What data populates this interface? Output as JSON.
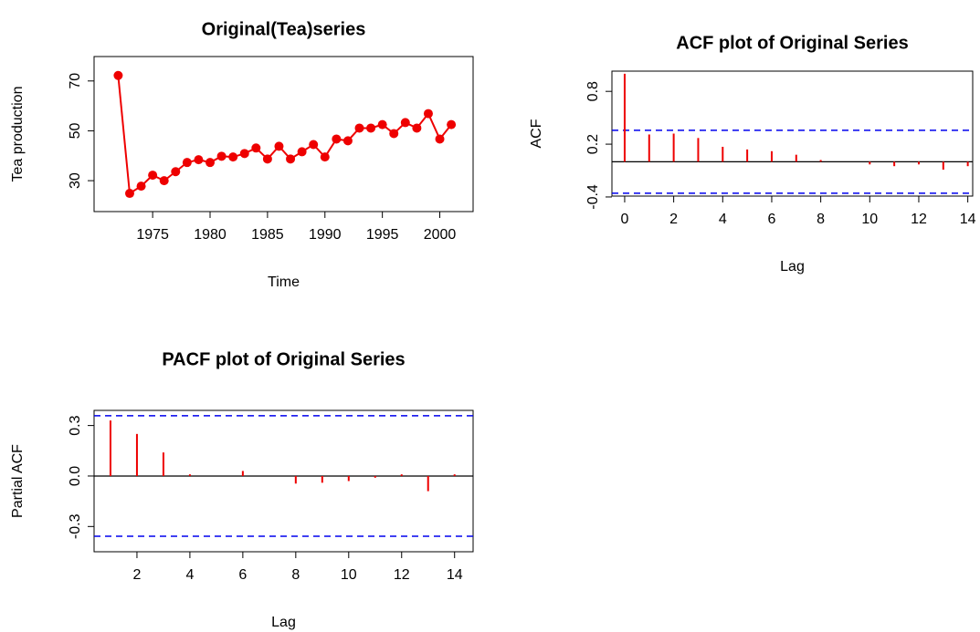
{
  "chart_data": [
    {
      "type": "line",
      "title": "Original(Tea)series",
      "xlabel": "Time",
      "ylabel": "Tea production",
      "color": "#ee0000",
      "x": [
        1972,
        1973,
        1974,
        1975,
        1976,
        1977,
        1978,
        1979,
        1980,
        1981,
        1982,
        1983,
        1984,
        1985,
        1986,
        1987,
        1988,
        1989,
        1990,
        1991,
        1992,
        1993,
        1994,
        1995,
        1996,
        1997,
        1998,
        1999,
        2000,
        2001
      ],
      "values": [
        72.2,
        24.9,
        27.8,
        32.2,
        30,
        33.6,
        37.3,
        38.4,
        37.3,
        39.8,
        39.5,
        40.9,
        43.1,
        38.7,
        43.8,
        38.7,
        41.6,
        44.5,
        39.5,
        46.7,
        46,
        51.1,
        51.1,
        52.5,
        48.9,
        53.3,
        51.1,
        56.9,
        46.7,
        52.5
      ],
      "xlim": [
        1969.9,
        2002.9
      ],
      "ylim": [
        17.6,
        79.8
      ],
      "xticks": [
        1975,
        1980,
        1985,
        1990,
        1995,
        2000
      ],
      "yticks": [
        30,
        50,
        70
      ]
    },
    {
      "type": "bar",
      "title": "ACF plot of Original Series",
      "xlabel": "Lag",
      "ylabel": "ACF",
      "color": "#ee0000",
      "x": [
        0,
        1,
        2,
        3,
        4,
        5,
        6,
        7,
        8,
        9,
        10,
        11,
        12,
        13,
        14
      ],
      "values": [
        1.0,
        0.31,
        0.32,
        0.27,
        0.17,
        0.14,
        0.12,
        0.08,
        0.02,
        0.0,
        -0.03,
        -0.05,
        -0.03,
        -0.09,
        -0.05
      ],
      "xlim": [
        -0.52,
        14.2
      ],
      "ylim": [
        -0.39,
        1.03
      ],
      "xticks": [
        0,
        2,
        4,
        6,
        8,
        10,
        12,
        14
      ],
      "yticks": [
        -0.4,
        0.2,
        0.8
      ],
      "conf_limit": 0.358,
      "conf_color": "#0000ee"
    },
    {
      "type": "bar",
      "title": "PACF plot of Original Series",
      "xlabel": "Lag",
      "ylabel": "Partial ACF",
      "color": "#ee0000",
      "x": [
        1,
        2,
        3,
        4,
        5,
        6,
        7,
        8,
        9,
        10,
        11,
        12,
        13,
        14
      ],
      "values": [
        0.33,
        0.25,
        0.14,
        0.01,
        0.0,
        0.03,
        0.0,
        -0.045,
        -0.04,
        -0.03,
        -0.01,
        0.01,
        -0.09,
        0.01
      ],
      "xlim": [
        0.38,
        14.7
      ],
      "ylim": [
        -0.45,
        0.39
      ],
      "xticks": [
        2,
        4,
        6,
        8,
        10,
        12,
        14
      ],
      "yticks": [
        -0.3,
        {
          "value": 0,
          "label": "0.0"
        },
        0.3
      ],
      "conf_limit": 0.358,
      "conf_color": "#0000ee"
    }
  ]
}
